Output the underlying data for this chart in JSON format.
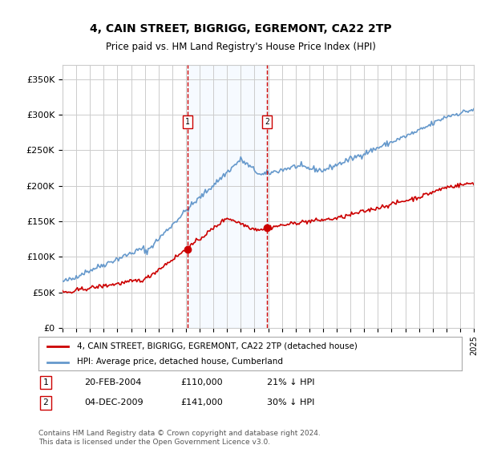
{
  "title": "4, CAIN STREET, BIGRIGG, EGREMONT, CA22 2TP",
  "subtitle": "Price paid vs. HM Land Registry's House Price Index (HPI)",
  "legend_line1": "4, CAIN STREET, BIGRIGG, EGREMONT, CA22 2TP (detached house)",
  "legend_line2": "HPI: Average price, detached house, Cumberland",
  "transaction1_label": "1",
  "transaction1_date": "20-FEB-2004",
  "transaction1_price": "£110,000",
  "transaction1_hpi": "21% ↓ HPI",
  "transaction2_label": "2",
  "transaction2_date": "04-DEC-2009",
  "transaction2_price": "£141,000",
  "transaction2_hpi": "30% ↓ HPI",
  "footnote": "Contains HM Land Registry data © Crown copyright and database right 2024.\nThis data is licensed under the Open Government Licence v3.0.",
  "hpi_color": "#6699cc",
  "price_color": "#cc0000",
  "background_color": "#ffffff",
  "grid_color": "#cccccc",
  "shade_color": "#ddeeff",
  "marker_color1": "#cc0000",
  "marker_color2": "#cc0000",
  "marker_x1": 2004.13,
  "marker_y1": 110000,
  "marker_x2": 2009.92,
  "marker_y2": 141000,
  "vline1_x": 2004.13,
  "vline2_x": 2009.92,
  "ylim": [
    0,
    370000
  ],
  "xlim_start": 1995,
  "xlim_end": 2025
}
